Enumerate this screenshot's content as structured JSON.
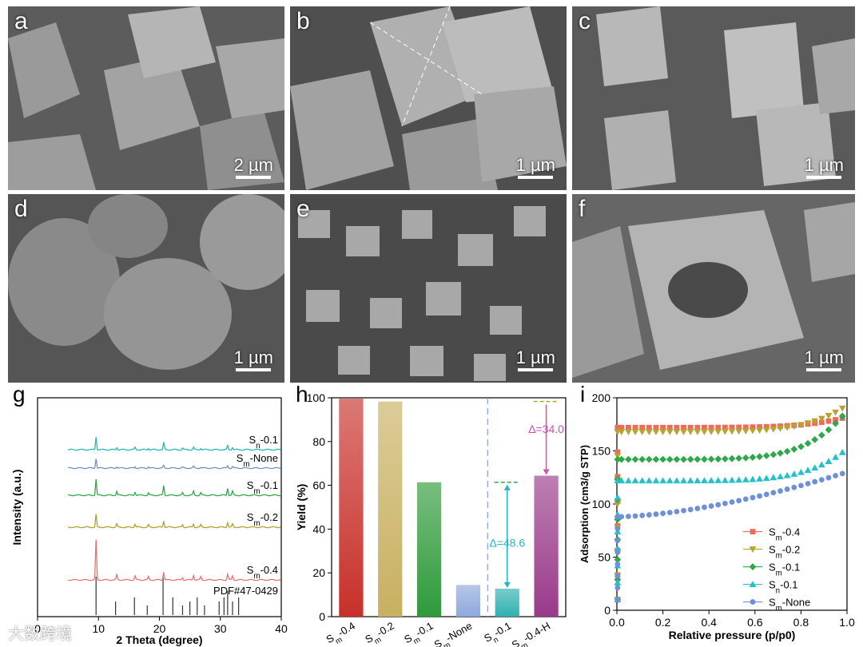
{
  "panels": [
    {
      "letter": "a",
      "scale": "2 µm"
    },
    {
      "letter": "b",
      "scale": "1 µm"
    },
    {
      "letter": "c",
      "scale": "1 µm"
    },
    {
      "letter": "d",
      "scale": "1 µm"
    },
    {
      "letter": "e",
      "scale": "1 µm"
    },
    {
      "letter": "f",
      "scale": "1 µm"
    }
  ],
  "watermark": "大数跨境",
  "chart_data": [
    {
      "panel": "g",
      "type": "line",
      "xlabel": "2 Theta (degree)",
      "ylabel": "Intensity (a.u.)",
      "xlim": [
        0,
        40
      ],
      "xticks": [
        0,
        10,
        20,
        30,
        40
      ],
      "series": [
        {
          "name": "Sn-0.1",
          "color": "#26b5b8"
        },
        {
          "name": "Sm-None",
          "color": "#6f8fcf"
        },
        {
          "name": "Sm-0.1",
          "color": "#2ea84a"
        },
        {
          "name": "Sm-0.2",
          "color": "#b3a02c"
        },
        {
          "name": "Sm-0.4",
          "color": "#e8736c"
        }
      ],
      "reference": {
        "name": "PDF#47-0429",
        "peaks": [
          9.6,
          12.8,
          15.9,
          18.0,
          20.6,
          22.2,
          23.8,
          25.0,
          26.2,
          27.4,
          29.8,
          30.6,
          31.2,
          32.0,
          33.0
        ]
      }
    },
    {
      "panel": "h",
      "type": "bar",
      "ylabel": "Yield (%)",
      "ylim": [
        0,
        100
      ],
      "yticks": [
        0,
        20,
        40,
        60,
        80,
        100
      ],
      "categories": [
        "Sm-0.4",
        "Sm-0.2",
        "Sm-0.1",
        "Sm-None",
        "Sn-0.1",
        "Sm-0.4-H"
      ],
      "values": [
        99.6,
        98.3,
        61.4,
        14.5,
        12.8,
        64.4
      ],
      "colors": [
        "#c8302a",
        "#c8b060",
        "#2e9a3a",
        "#8fa8dc",
        "#30b0b0",
        "#9a3a8a"
      ],
      "annotations": [
        {
          "text": "Δ=48.6",
          "color": "#20b5c0"
        },
        {
          "text": "Δ=34.0",
          "color": "#d050b0"
        }
      ]
    },
    {
      "panel": "i",
      "type": "scatter",
      "xlabel": "Relative pressure (p/p0)",
      "ylabel": "Adsorption (cm3/g STP)",
      "xlim": [
        0,
        1.0
      ],
      "ylim": [
        0,
        200
      ],
      "xticks": [
        0.0,
        0.2,
        0.4,
        0.6,
        0.8,
        1.0
      ],
      "yticks": [
        0,
        50,
        100,
        150,
        200
      ],
      "legend_position": "bottom-right",
      "series": [
        {
          "name": "Sm-0.4",
          "color": "#ef6a5a",
          "marker": "square",
          "plateau": 172,
          "end": 182
        },
        {
          "name": "Sm-0.2",
          "color": "#b8a230",
          "marker": "triangle-down",
          "plateau": 168,
          "end": 193
        },
        {
          "name": "Sm-0.1",
          "color": "#2ea84a",
          "marker": "diamond",
          "plateau": 142,
          "end": 188
        },
        {
          "name": "Sn-0.1",
          "color": "#27c0c8",
          "marker": "triangle-up",
          "plateau": 122,
          "end": 152
        },
        {
          "name": "Sm-None",
          "color": "#6f8fd8",
          "marker": "circle",
          "plateau": 88,
          "end": 130
        }
      ]
    }
  ]
}
